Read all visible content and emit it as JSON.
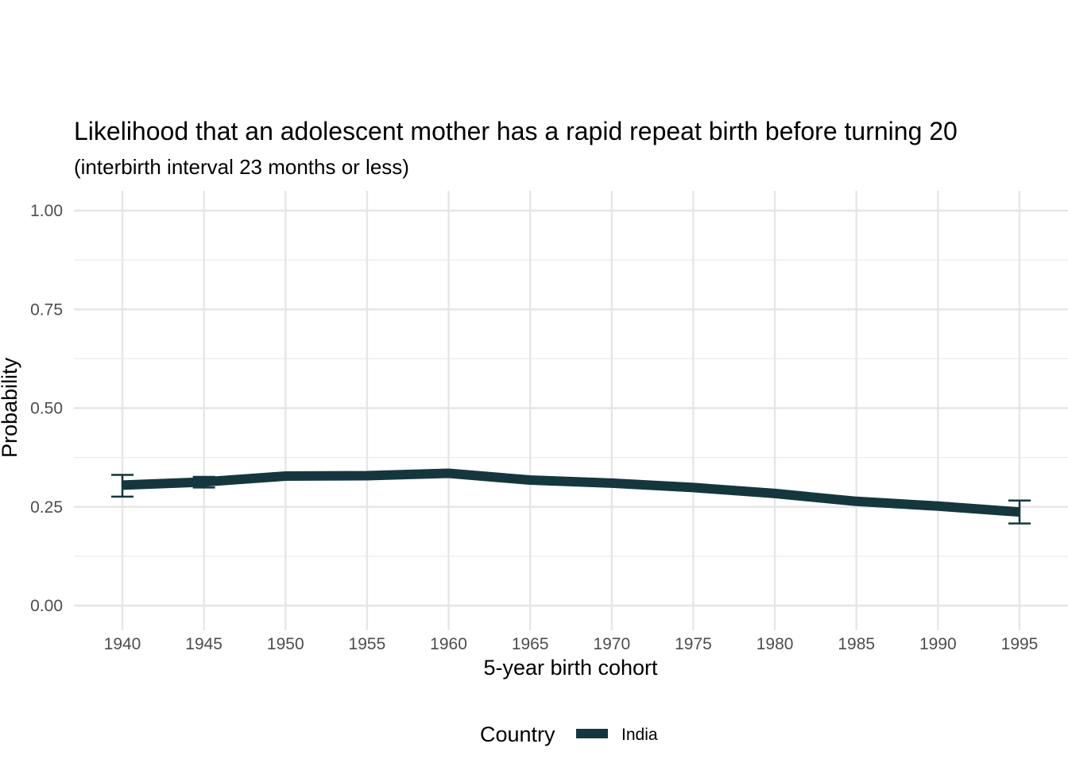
{
  "chart_data": {
    "type": "line",
    "title": "Likelihood that an adolescent mother has a rapid repeat birth before turning 20",
    "subtitle": "(interbirth interval 23 months or less)",
    "xlabel": "5-year birth cohort",
    "ylabel": "Probability",
    "x": [
      1940,
      1945,
      1950,
      1955,
      1960,
      1965,
      1970,
      1975,
      1980,
      1985,
      1990,
      1995
    ],
    "x_ticks": [
      "1940",
      "1945",
      "1950",
      "1955",
      "1960",
      "1965",
      "1970",
      "1975",
      "1980",
      "1985",
      "1990",
      "1995"
    ],
    "y_ticks": [
      "0.00",
      "0.25",
      "0.50",
      "0.75",
      "1.00"
    ],
    "ylim": [
      0,
      1
    ],
    "xlim": [
      1937,
      1998
    ],
    "grid": true,
    "legend": {
      "title": "Country",
      "position": "bottom"
    },
    "series": [
      {
        "name": "India",
        "color": "#14373f",
        "values": [
          0.305,
          0.313,
          0.328,
          0.329,
          0.335,
          0.318,
          0.31,
          0.299,
          0.284,
          0.264,
          0.252,
          0.237
        ],
        "errorbars": [
          {
            "x": 1940,
            "low": 0.276,
            "high": 0.331
          },
          {
            "x": 1945,
            "low": 0.299,
            "high": 0.326
          },
          {
            "x": 1950,
            "low": 0.321,
            "high": 0.335
          },
          {
            "x": 1955,
            "low": 0.324,
            "high": 0.334
          },
          {
            "x": 1960,
            "low": 0.331,
            "high": 0.339
          },
          {
            "x": 1965,
            "low": 0.314,
            "high": 0.322
          },
          {
            "x": 1970,
            "low": 0.306,
            "high": 0.314
          },
          {
            "x": 1975,
            "low": 0.295,
            "high": 0.303
          },
          {
            "x": 1980,
            "low": 0.279,
            "high": 0.289
          },
          {
            "x": 1985,
            "low": 0.258,
            "high": 0.27
          },
          {
            "x": 1990,
            "low": 0.244,
            "high": 0.26
          },
          {
            "x": 1995,
            "low": 0.208,
            "high": 0.266
          }
        ]
      }
    ]
  }
}
